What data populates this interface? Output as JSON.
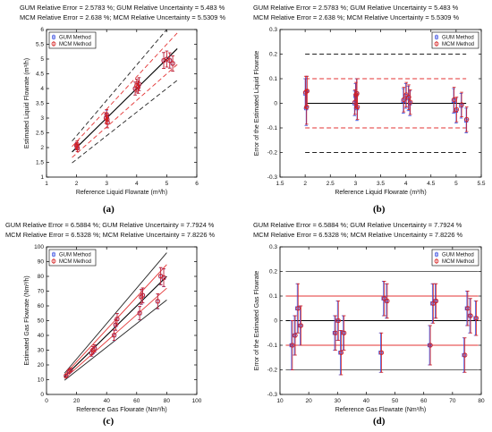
{
  "colors": {
    "gum": "#3b4fe0",
    "mcm": "#d62020",
    "fit": "#000000",
    "band_inner": "#e33333",
    "band_outer": "#222222",
    "band_err": "#555555"
  },
  "panels": [
    {
      "id": "a",
      "label": "(a)",
      "header": [
        "GUM Relative Error = 2.5783 %; GUM Relative Uncertainty = 5.483 %",
        "MCM Relative Error = 2.638 %; MCM Relative Uncertainty = 5.5309 %"
      ],
      "chart_data": {
        "type": "scatter",
        "xlabel": "Reference Liquid Flowrate (m³/h)",
        "ylabel": "Estimated Liquid Flowrate (m³/h)",
        "xlim": [
          1,
          6
        ],
        "ylim": [
          1,
          6
        ],
        "xticks": [
          "1",
          "2",
          "3",
          "4",
          "5",
          "6"
        ],
        "yticks": [
          "1",
          "1.5",
          "2",
          "2.5",
          "3",
          "3.5",
          "4",
          "4.5",
          "5",
          "5.5",
          "6"
        ],
        "legend": [
          "GUM Method",
          "MCM Method"
        ],
        "legend_position": "top-left",
        "bands": [
          {
            "rel": 0,
            "style": "solid"
          },
          {
            "rel": 0.1,
            "style": "dashed-red"
          },
          {
            "rel": 0.2,
            "style": "dashed-black"
          }
        ],
        "series": [
          {
            "name": "GUM Method",
            "points": [
              [
                2.0,
                2.05,
                0.12
              ],
              [
                2.02,
                2.1,
                0.13
              ],
              [
                2.03,
                1.98,
                0.12
              ],
              [
                2.98,
                3.0,
                0.18
              ],
              [
                3.0,
                3.1,
                0.17
              ],
              [
                3.02,
                2.95,
                0.16
              ],
              [
                3.03,
                2.85,
                0.18
              ],
              [
                3.95,
                4.0,
                0.22
              ],
              [
                4.0,
                4.1,
                0.22
              ],
              [
                4.05,
                4.05,
                0.21
              ],
              [
                4.08,
                4.15,
                0.22
              ],
              [
                4.9,
                4.95,
                0.27
              ],
              [
                5.0,
                5.0,
                0.27
              ],
              [
                5.1,
                4.95,
                0.26
              ],
              [
                5.2,
                4.85,
                0.26
              ]
            ]
          },
          {
            "name": "MCM Method",
            "points": [
              [
                2.0,
                2.06,
                0.12
              ],
              [
                2.02,
                2.1,
                0.13
              ],
              [
                2.03,
                1.98,
                0.12
              ],
              [
                2.98,
                3.0,
                0.18
              ],
              [
                3.0,
                3.12,
                0.17
              ],
              [
                3.02,
                2.95,
                0.16
              ],
              [
                3.03,
                2.85,
                0.18
              ],
              [
                3.95,
                4.0,
                0.22
              ],
              [
                4.0,
                4.1,
                0.22
              ],
              [
                4.05,
                4.05,
                0.21
              ],
              [
                4.08,
                4.15,
                0.22
              ],
              [
                4.9,
                4.95,
                0.27
              ],
              [
                5.0,
                5.0,
                0.27
              ],
              [
                5.1,
                4.95,
                0.26
              ],
              [
                5.2,
                4.85,
                0.26
              ]
            ]
          }
        ]
      }
    },
    {
      "id": "b",
      "label": "(b)",
      "header": [
        "GUM Relative Error = 2.5783 %; GUM Relative Uncertainty = 5.483 %",
        "MCM Relative Error = 2.638 %; MCM Relative Uncertainty = 5.5309 %"
      ],
      "chart_data": {
        "type": "scatter",
        "xlabel": "Reference Liquid Flowrate (m³/h)",
        "ylabel": "Error of the Estimated Liquid Flowrate",
        "xlim": [
          1.5,
          5.5
        ],
        "ylim": [
          -0.3,
          0.3
        ],
        "xticks": [
          "1.5",
          "2",
          "2.5",
          "3",
          "3.5",
          "4",
          "4.5",
          "5",
          "5.5"
        ],
        "yticks": [
          "-0.3",
          "-0.2",
          "-0.1",
          "0",
          "0.1",
          "0.2",
          "0.3"
        ],
        "legend": [
          "GUM Method",
          "MCM Method"
        ],
        "legend_position": "top-right",
        "hlines": [
          {
            "y": 0,
            "style": "solid"
          },
          {
            "y": 0.1,
            "style": "dashed-red"
          },
          {
            "y": -0.1,
            "style": "dashed-red"
          },
          {
            "y": 0.2,
            "style": "dashed-black"
          },
          {
            "y": -0.2,
            "style": "dashed-black"
          }
        ],
        "series": [
          {
            "name": "GUM Method",
            "points": [
              [
                2.0,
                0.04,
                0.06
              ],
              [
                2.02,
                -0.02,
                0.07
              ],
              [
                2.03,
                0.05,
                0.06
              ],
              [
                2.98,
                0.0,
                0.05
              ],
              [
                3.0,
                0.03,
                0.05
              ],
              [
                3.02,
                0.04,
                0.06
              ],
              [
                3.03,
                -0.02,
                0.05
              ],
              [
                3.95,
                0.01,
                0.05
              ],
              [
                4.0,
                0.03,
                0.05
              ],
              [
                4.05,
                0.02,
                0.05
              ],
              [
                4.08,
                0.0,
                0.05
              ],
              [
                4.95,
                0.01,
                0.05
              ],
              [
                5.0,
                -0.03,
                0.05
              ],
              [
                5.1,
                -0.01,
                0.05
              ],
              [
                5.2,
                -0.07,
                0.05
              ]
            ]
          },
          {
            "name": "MCM Method",
            "points": [
              [
                2.01,
                0.045,
                0.065
              ],
              [
                2.03,
                -0.015,
                0.07
              ],
              [
                2.04,
                0.05,
                0.06
              ],
              [
                2.99,
                0.005,
                0.05
              ],
              [
                3.01,
                0.035,
                0.05
              ],
              [
                3.03,
                0.04,
                0.06
              ],
              [
                3.04,
                -0.015,
                0.05
              ],
              [
                3.96,
                0.015,
                0.05
              ],
              [
                4.01,
                0.035,
                0.05
              ],
              [
                4.06,
                0.025,
                0.05
              ],
              [
                4.09,
                0.005,
                0.05
              ],
              [
                4.96,
                0.015,
                0.05
              ],
              [
                5.01,
                -0.025,
                0.05
              ],
              [
                5.11,
                -0.005,
                0.05
              ],
              [
                5.21,
                -0.065,
                0.05
              ]
            ]
          }
        ]
      }
    },
    {
      "id": "c",
      "label": "(c)",
      "header": [
        "GUM Relative Error = 6.5884 %; GUM Relative Uncertainty = 7.7924 %",
        "MCM Relative Error = 6.5328 %; MCM Relative Uncertainty = 7.8226 %"
      ],
      "chart_data": {
        "type": "scatter",
        "xlabel": "Reference Gas Flowrate (Nm³/h)",
        "ylabel": "Estimated Gas Flowrate (Nm³/h)",
        "xlim": [
          0,
          100
        ],
        "ylim": [
          0,
          100
        ],
        "xticks": [
          "0",
          "20",
          "40",
          "60",
          "80",
          "100"
        ],
        "yticks": [
          "0",
          "10",
          "20",
          "30",
          "40",
          "50",
          "60",
          "70",
          "80",
          "90",
          "100"
        ],
        "legend": [
          "GUM Method",
          "MCM Method"
        ],
        "legend_position": "top-left",
        "bands": [
          {
            "rel": 0,
            "style": "solid"
          },
          {
            "rel": 0.1,
            "style": "solid-red"
          },
          {
            "rel": 0.2,
            "style": "solid-black"
          }
        ],
        "series": [
          {
            "name": "GUM Method",
            "points": [
              [
                13,
                12.5,
                1.0
              ],
              [
                15,
                15.5,
                1.2
              ],
              [
                16,
                16.5,
                1.3
              ],
              [
                30,
                28,
                2.2
              ],
              [
                31,
                30,
                2.4
              ],
              [
                32,
                31,
                2.5
              ],
              [
                45,
                40,
                3.5
              ],
              [
                46,
                47,
                3.6
              ],
              [
                47,
                51,
                3.7
              ],
              [
                62,
                55,
                4.5
              ],
              [
                63,
                66,
                5.0
              ],
              [
                64,
                67,
                5.0
              ],
              [
                74,
                63,
                5.0
              ],
              [
                76,
                80,
                5.8
              ],
              [
                78,
                79,
                6.0
              ]
            ]
          },
          {
            "name": "MCM Method",
            "points": [
              [
                13,
                12.6,
                1.0
              ],
              [
                15,
                15.6,
                1.2
              ],
              [
                16,
                16.6,
                1.3
              ],
              [
                30,
                28.2,
                2.2
              ],
              [
                31,
                30.2,
                2.4
              ],
              [
                32,
                31.2,
                2.5
              ],
              [
                45,
                40.2,
                3.5
              ],
              [
                46,
                47.2,
                3.6
              ],
              [
                47,
                51.2,
                3.7
              ],
              [
                62,
                55.2,
                4.5
              ],
              [
                63,
                66.2,
                5.0
              ],
              [
                64,
                67.2,
                5.0
              ],
              [
                74,
                63.2,
                5.0
              ],
              [
                76,
                80.2,
                5.8
              ],
              [
                78,
                79.2,
                6.0
              ]
            ]
          }
        ]
      }
    },
    {
      "id": "d",
      "label": "(d)",
      "header": [
        "GUM Relative Error = 6.5884 %; GUM Relative Uncertainty = 7.7924 %",
        "MCM Relative Error = 6.5328 %; MCM Relative Uncertainty = 7.8226 %"
      ],
      "chart_data": {
        "type": "scatter",
        "xlabel": "Reference Gas Flowrate (Nm³/h)",
        "ylabel": "Error of the Estimated Gas Flowrate",
        "xlim": [
          10,
          80
        ],
        "ylim": [
          -0.3,
          0.3
        ],
        "xticks": [
          "10",
          "20",
          "30",
          "40",
          "50",
          "60",
          "70",
          "80"
        ],
        "yticks": [
          "-0.3",
          "-0.2",
          "-0.1",
          "0",
          "0.1",
          "0.2",
          "0.3"
        ],
        "legend": [
          "GUM Method",
          "MCM Method"
        ],
        "legend_position": "top-right",
        "hlines": [
          {
            "y": 0,
            "style": "solid"
          },
          {
            "y": 0.1,
            "style": "solid-red"
          },
          {
            "y": -0.1,
            "style": "solid-red"
          },
          {
            "y": 0.2,
            "style": "solid-gray"
          },
          {
            "y": -0.2,
            "style": "solid-gray"
          }
        ],
        "series": [
          {
            "name": "GUM Method",
            "points": [
              [
                14,
                -0.1,
                0.1
              ],
              [
                15,
                -0.06,
                0.08
              ],
              [
                16,
                0.05,
                0.1
              ],
              [
                17,
                -0.02,
                0.08
              ],
              [
                29,
                -0.05,
                0.07
              ],
              [
                30,
                0.0,
                0.08
              ],
              [
                31,
                -0.13,
                0.09
              ],
              [
                32,
                -0.05,
                0.07
              ],
              [
                45,
                -0.13,
                0.08
              ],
              [
                46,
                0.09,
                0.07
              ],
              [
                47,
                0.08,
                0.07
              ],
              [
                62,
                -0.1,
                0.08
              ],
              [
                63,
                0.07,
                0.08
              ],
              [
                64,
                0.08,
                0.07
              ],
              [
                74,
                -0.14,
                0.07
              ],
              [
                75,
                0.05,
                0.07
              ],
              [
                76,
                0.02,
                0.07
              ],
              [
                78,
                0.01,
                0.07
              ]
            ]
          },
          {
            "name": "MCM Method",
            "points": [
              [
                14.3,
                -0.1,
                0.1
              ],
              [
                15.3,
                -0.06,
                0.08
              ],
              [
                16.3,
                0.05,
                0.1
              ],
              [
                17.3,
                -0.02,
                0.08
              ],
              [
                29.3,
                -0.05,
                0.07
              ],
              [
                30.3,
                0.0,
                0.08
              ],
              [
                31.3,
                -0.13,
                0.09
              ],
              [
                32.3,
                -0.05,
                0.07
              ],
              [
                45.3,
                -0.13,
                0.08
              ],
              [
                46.3,
                0.09,
                0.07
              ],
              [
                47.3,
                0.08,
                0.07
              ],
              [
                62.3,
                -0.1,
                0.08
              ],
              [
                63.3,
                0.07,
                0.08
              ],
              [
                64.3,
                0.08,
                0.07
              ],
              [
                74.3,
                -0.14,
                0.07
              ],
              [
                75.3,
                0.05,
                0.07
              ],
              [
                76.3,
                0.02,
                0.07
              ],
              [
                78.3,
                0.01,
                0.07
              ]
            ]
          }
        ]
      }
    }
  ]
}
